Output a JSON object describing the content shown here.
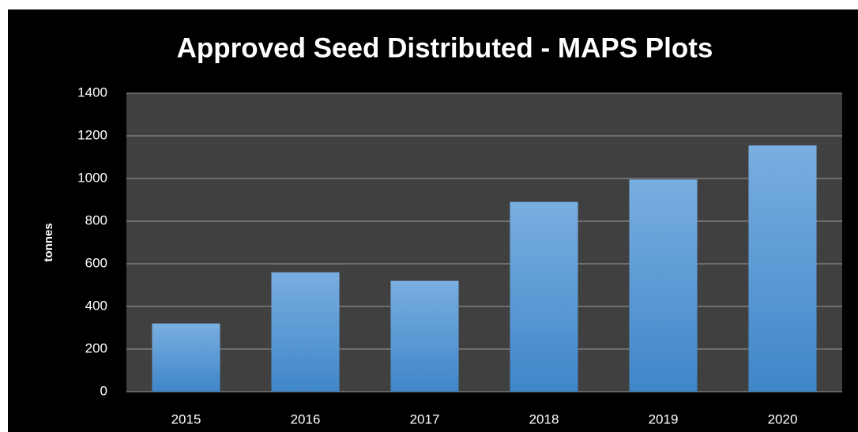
{
  "chart_data": {
    "type": "bar",
    "title": "Approved Seed Distributed - MAPS Plots",
    "y_label": "tonnes",
    "categories": [
      "2015",
      "2016",
      "2017",
      "2018",
      "2019",
      "2020"
    ],
    "values": [
      320,
      560,
      520,
      890,
      995,
      1155
    ],
    "color": "#5b9bd5",
    "ylim": [
      0,
      1400
    ],
    "yticks": [
      0,
      200,
      400,
      600,
      800,
      1000,
      1200,
      1400
    ],
    "grid": true
  }
}
